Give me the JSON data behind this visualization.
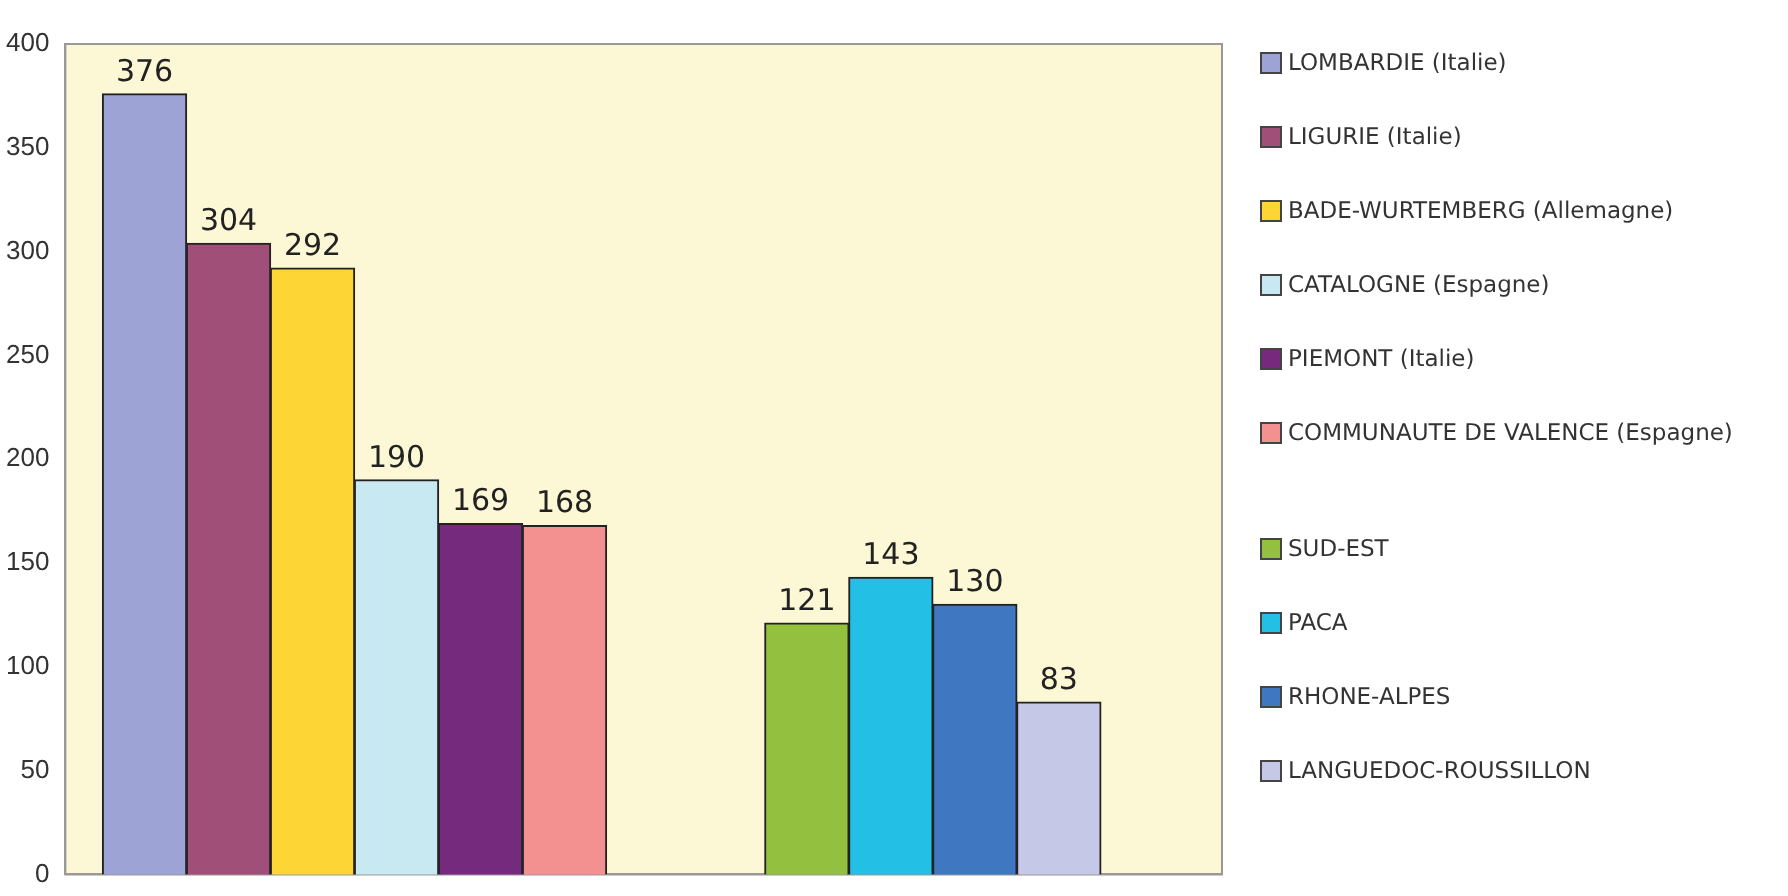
{
  "chart_data": {
    "type": "bar",
    "categories": [
      null,
      null
    ],
    "series": [
      {
        "name": "LOMBARDIE (Italie)",
        "color": "#9da3d5",
        "values": [
          376,
          null
        ]
      },
      {
        "name": "LIGURIE (Italie)",
        "color": "#a04f78",
        "values": [
          304,
          null
        ]
      },
      {
        "name": "BADE-WURTEMBERG (Allemagne)",
        "color": "#fdd535",
        "values": [
          292,
          null
        ]
      },
      {
        "name": "CATALOGNE (Espagne)",
        "color": "#c8e8f2",
        "values": [
          190,
          null
        ]
      },
      {
        "name": "PIEMONT (Italie)",
        "color": "#762a7e",
        "values": [
          169,
          null
        ]
      },
      {
        "name": "COMMUNAUTE DE VALENCE (Espagne)",
        "color": "#f39190",
        "values": [
          168,
          null
        ]
      },
      {
        "name": "SUD-EST",
        "color": "#93c13f",
        "values": [
          null,
          121
        ]
      },
      {
        "name": "PACA",
        "color": "#23bfe4",
        "values": [
          null,
          143
        ]
      },
      {
        "name": "RHONE-ALPES",
        "color": "#3f78c0",
        "values": [
          null,
          130
        ]
      },
      {
        "name": "LANGUEDOC-ROUSSILLON",
        "color": "#c5c8e6",
        "values": [
          null,
          83
        ]
      }
    ],
    "ylim": [
      0,
      400
    ],
    "yticks": [
      0,
      50,
      100,
      150,
      200,
      250,
      300,
      350,
      400
    ],
    "grid": false,
    "legend": "right",
    "data_labels": true
  }
}
